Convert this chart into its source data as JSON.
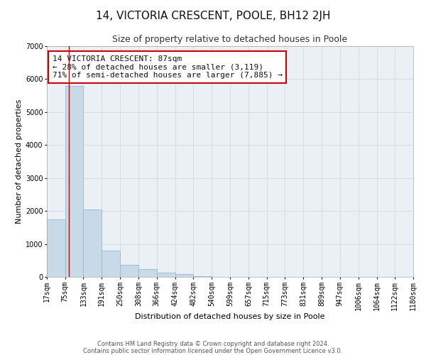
{
  "title": "14, VICTORIA CRESCENT, POOLE, BH12 2JH",
  "subtitle": "Size of property relative to detached houses in Poole",
  "xlabel": "Distribution of detached houses by size in Poole",
  "ylabel": "Number of detached properties",
  "bar_color": "#c8d9e8",
  "bar_edgecolor": "#9ab8cc",
  "grid_color": "#d0d8e0",
  "background_color": "#ffffff",
  "plot_bg_color": "#eaf0f6",
  "annotation_line1": "14 VICTORIA CRESCENT: 87sqm",
  "annotation_line2": "← 28% of detached houses are smaller (3,119)",
  "annotation_line3": "71% of semi-detached houses are larger (7,885) →",
  "property_size": 87,
  "bin_edges": [
    17,
    75,
    133,
    191,
    250,
    308,
    366,
    424,
    482,
    540,
    599,
    657,
    715,
    773,
    831,
    889,
    947,
    1006,
    1064,
    1122,
    1180
  ],
  "bar_heights": [
    1750,
    5800,
    2050,
    800,
    370,
    230,
    120,
    80,
    20,
    10,
    5,
    5,
    2,
    0,
    0,
    0,
    0,
    0,
    0,
    0
  ],
  "ylim": [
    0,
    7000
  ],
  "yticks": [
    0,
    1000,
    2000,
    3000,
    4000,
    5000,
    6000,
    7000
  ],
  "footer_line1": "Contains HM Land Registry data © Crown copyright and database right 2024.",
  "footer_line2": "Contains public sector information licensed under the Open Government Licence v3.0.",
  "red_line_color": "#cc0000",
  "annotation_box_edgecolor": "#cc0000",
  "title_fontsize": 11,
  "subtitle_fontsize": 9,
  "axis_label_fontsize": 8,
  "tick_fontsize": 7,
  "annotation_fontsize": 8,
  "footer_fontsize": 6
}
